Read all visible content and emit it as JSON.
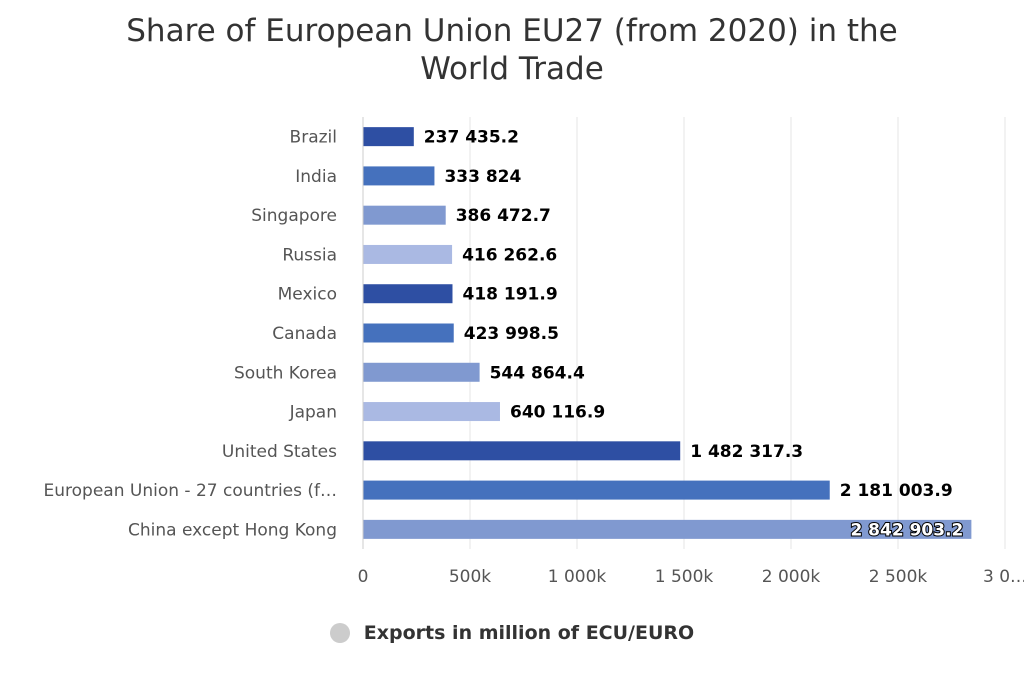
{
  "chart_data": {
    "type": "bar",
    "orientation": "horizontal",
    "title": "Share of European Union EU27 (from 2020) in the World Trade",
    "categories": [
      "Brazil",
      "India",
      "Singapore",
      "Russia",
      "Mexico",
      "Canada",
      "South Korea",
      "Japan",
      "United States",
      "European Union - 27 countries (f…",
      "China except Hong Kong"
    ],
    "series": [
      {
        "name": "Exports in million of ECU/EURO",
        "values": [
          237435.2,
          333824,
          386472.7,
          416262.6,
          418191.9,
          423998.5,
          544864.4,
          640116.9,
          1482317.3,
          2181003.9,
          2842903.2
        ],
        "labels": [
          "237 435.2",
          "333 824",
          "386 472.7",
          "416 262.6",
          "418 191.9",
          "423 998.5",
          "544 864.4",
          "640 116.9",
          "1 482 317.3",
          "2 181 003.9",
          "2 842 903.2"
        ]
      }
    ],
    "bar_colors": [
      "#2e4fa3",
      "#4571bd",
      "#8099d0",
      "#aab9e3"
    ],
    "xlim": [
      0,
      3000000
    ],
    "xticks": [
      0,
      500000,
      1000000,
      1500000,
      2000000,
      2500000,
      3000000
    ],
    "xtick_labels": [
      "0",
      "500k",
      "1 000k",
      "1 500k",
      "2 000k",
      "2 500k",
      "3 0…"
    ],
    "grid": true,
    "legend_position": "bottom"
  }
}
